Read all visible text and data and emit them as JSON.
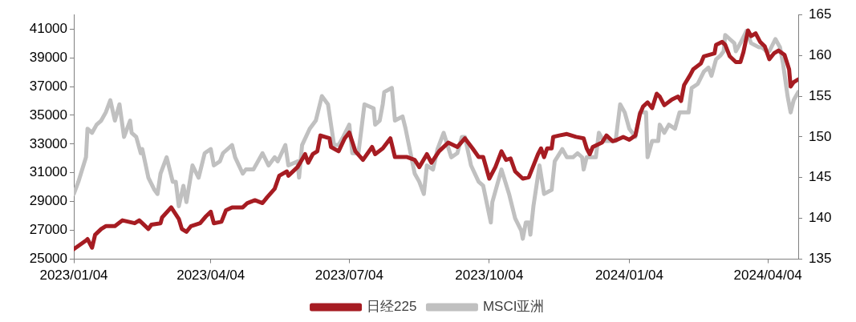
{
  "chart_data": {
    "type": "line",
    "legend": "bottom",
    "marker": "none",
    "line_style": "solid",
    "xlim": [
      "2023-01-04",
      "2024-04-24"
    ],
    "xticks": [
      {
        "value": "2023-01-04",
        "label": "2023/01/04"
      },
      {
        "value": "2023-04-04",
        "label": "2023/04/04"
      },
      {
        "value": "2023-07-04",
        "label": "2023/07/04"
      },
      {
        "value": "2023-10-04",
        "label": "2023/10/04"
      },
      {
        "value": "2024-01-04",
        "label": "2024/01/04"
      },
      {
        "value": "2024-04-04",
        "label": "2024/04/04"
      }
    ],
    "ylim": [
      25000,
      42000
    ],
    "yticks": [
      25000,
      27000,
      29000,
      31000,
      33000,
      35000,
      37000,
      39000,
      41000
    ],
    "y2lim": [
      135,
      165
    ],
    "y2ticks": [
      135,
      140,
      145,
      150,
      155,
      160,
      165
    ],
    "series": [
      {
        "name": "日经225",
        "color": "#a61c22",
        "x": [
          "2023-01-04",
          "2023-01-12",
          "2023-01-13",
          "2023-01-16",
          "2023-01-18",
          "2023-01-22",
          "2023-01-25",
          "2023-01-31",
          "2023-02-05",
          "2023-02-13",
          "2023-02-16",
          "2023-02-18",
          "2023-02-22",
          "2023-02-24",
          "2023-03-02",
          "2023-03-03",
          "2023-03-09",
          "2023-03-14",
          "2023-03-16",
          "2023-03-19",
          "2023-03-22",
          "2023-03-28",
          "2023-04-01",
          "2023-04-04",
          "2023-04-06",
          "2023-04-11",
          "2023-04-14",
          "2023-04-18",
          "2023-04-25",
          "2023-04-28",
          "2023-05-03",
          "2023-05-08",
          "2023-05-11",
          "2023-05-16",
          "2023-05-19",
          "2023-05-24",
          "2023-05-25",
          "2023-05-31",
          "2023-06-05",
          "2023-06-07",
          "2023-06-10",
          "2023-06-13",
          "2023-06-15",
          "2023-06-21",
          "2023-06-22",
          "2023-06-27",
          "2023-07-01",
          "2023-07-04",
          "2023-07-08",
          "2023-07-13",
          "2023-07-19",
          "2023-07-21",
          "2023-07-26",
          "2023-07-31",
          "2023-08-03",
          "2023-08-11",
          "2023-08-16",
          "2023-08-19",
          "2023-08-24",
          "2023-08-27",
          "2023-09-01",
          "2023-09-07",
          "2023-09-13",
          "2023-09-18",
          "2023-09-23",
          "2023-09-27",
          "2023-09-30",
          "2023-10-04",
          "2023-10-08",
          "2023-10-12",
          "2023-10-15",
          "2023-10-18",
          "2023-10-21",
          "2023-10-26",
          "2023-10-30",
          "2023-11-05",
          "2023-11-07",
          "2023-11-09",
          "2023-11-11",
          "2023-11-14",
          "2023-11-15",
          "2023-11-19",
          "2023-11-24",
          "2023-11-30",
          "2023-12-05",
          "2023-12-07",
          "2023-12-09",
          "2023-12-11",
          "2023-12-17",
          "2023-12-20",
          "2023-12-24",
          "2023-12-27",
          "2023-12-31",
          "2024-01-04",
          "2024-01-08",
          "2024-01-11",
          "2024-01-13",
          "2024-01-16",
          "2024-01-19",
          "2024-01-22",
          "2024-01-24",
          "2024-01-27",
          "2024-02-01",
          "2024-02-05",
          "2024-02-07",
          "2024-02-09",
          "2024-02-13",
          "2024-02-15",
          "2024-02-20",
          "2024-02-22",
          "2024-02-29",
          "2024-03-01",
          "2024-03-05",
          "2024-03-07",
          "2024-03-10",
          "2024-03-14",
          "2024-03-17",
          "2024-03-19",
          "2024-03-22",
          "2024-03-24",
          "2024-03-27",
          "2024-03-30",
          "2024-04-02",
          "2024-04-05",
          "2024-04-08",
          "2024-04-11",
          "2024-04-15",
          "2024-04-18",
          "2024-04-19",
          "2024-04-21",
          "2024-04-24"
        ],
        "values": [
          25700,
          26300,
          26400,
          25800,
          26700,
          27100,
          27300,
          27300,
          27700,
          27500,
          27700,
          27500,
          27100,
          27400,
          27500,
          27900,
          28600,
          27800,
          27100,
          26900,
          27300,
          27500,
          28000,
          28300,
          27500,
          27600,
          28400,
          28600,
          28600,
          28900,
          29100,
          28900,
          29300,
          29900,
          30800,
          31100,
          30800,
          31400,
          32300,
          31700,
          32300,
          32500,
          33600,
          33400,
          32800,
          32500,
          33400,
          33800,
          32500,
          31900,
          32800,
          32300,
          32700,
          33400,
          32100,
          32100,
          31900,
          31400,
          32300,
          31700,
          32500,
          33100,
          32800,
          33400,
          32700,
          32100,
          32100,
          30600,
          31400,
          32500,
          31900,
          32000,
          31100,
          30600,
          30700,
          32300,
          32700,
          32100,
          32700,
          32700,
          33500,
          33600,
          33700,
          33500,
          33400,
          32700,
          32300,
          32800,
          33100,
          33600,
          33200,
          33300,
          33500,
          33300,
          33600,
          35100,
          35600,
          35900,
          35500,
          36500,
          36300,
          35700,
          36100,
          36300,
          36000,
          37100,
          37800,
          38200,
          38600,
          39100,
          39300,
          39900,
          40100,
          39900,
          39100,
          38700,
          38700,
          39400,
          40900,
          40500,
          40700,
          40100,
          39800,
          38900,
          39300,
          39500,
          39200,
          38200,
          37000,
          37300,
          37500
        ]
      },
      {
        "name": "MSCI亚洲",
        "color": "#c0c0c0",
        "axis": "y2",
        "x": [
          "2023-01-04",
          "2023-01-07",
          "2023-01-12",
          "2023-01-13",
          "2023-01-16",
          "2023-01-19",
          "2023-01-22",
          "2023-01-25",
          "2023-01-28",
          "2023-01-31",
          "2023-02-03",
          "2023-02-06",
          "2023-02-10",
          "2023-02-11",
          "2023-02-14",
          "2023-02-17",
          "2023-02-18",
          "2023-02-22",
          "2023-02-26",
          "2023-02-28",
          "2023-03-02",
          "2023-03-06",
          "2023-03-10",
          "2023-03-12",
          "2023-03-14",
          "2023-03-17",
          "2023-03-19",
          "2023-03-23",
          "2023-03-27",
          "2023-03-31",
          "2023-04-04",
          "2023-04-06",
          "2023-04-10",
          "2023-04-12",
          "2023-04-18",
          "2023-04-20",
          "2023-04-25",
          "2023-04-27",
          "2023-05-02",
          "2023-05-08",
          "2023-05-12",
          "2023-05-16",
          "2023-05-18",
          "2023-05-23",
          "2023-05-25",
          "2023-05-31",
          "2023-06-01",
          "2023-06-03",
          "2023-06-08",
          "2023-06-12",
          "2023-06-16",
          "2023-06-20",
          "2023-06-24",
          "2023-06-27",
          "2023-06-30",
          "2023-07-04",
          "2023-07-06",
          "2023-07-10",
          "2023-07-14",
          "2023-07-20",
          "2023-07-21",
          "2023-07-24",
          "2023-07-26",
          "2023-07-27",
          "2023-08-01",
          "2023-08-03",
          "2023-08-08",
          "2023-08-10",
          "2023-08-16",
          "2023-08-19",
          "2023-08-22",
          "2023-08-24",
          "2023-08-28",
          "2023-08-31",
          "2023-09-04",
          "2023-09-09",
          "2023-09-13",
          "2023-09-16",
          "2023-09-18",
          "2023-09-22",
          "2023-09-27",
          "2023-09-30",
          "2023-10-05",
          "2023-10-06",
          "2023-10-12",
          "2023-10-17",
          "2023-10-21",
          "2023-10-25",
          "2023-10-26",
          "2023-10-28",
          "2023-10-30",
          "2023-10-31",
          "2023-11-02",
          "2023-11-06",
          "2023-11-09",
          "2023-11-14",
          "2023-11-16",
          "2023-11-21",
          "2023-11-24",
          "2023-11-28",
          "2023-12-01",
          "2023-12-04",
          "2023-12-05",
          "2023-12-07",
          "2023-12-13",
          "2023-12-15",
          "2023-12-18",
          "2023-12-22",
          "2023-12-26",
          "2023-12-29",
          "2024-01-01",
          "2024-01-04",
          "2024-01-08",
          "2024-01-11",
          "2024-01-15",
          "2024-01-16",
          "2024-01-19",
          "2024-01-23",
          "2024-01-24",
          "2024-01-27",
          "2024-01-30",
          "2024-02-03",
          "2024-02-06",
          "2024-02-09",
          "2024-02-12",
          "2024-02-14",
          "2024-02-18",
          "2024-02-22",
          "2024-02-25",
          "2024-02-27",
          "2024-03-01",
          "2024-03-04",
          "2024-03-06",
          "2024-03-07",
          "2024-03-10",
          "2024-03-13",
          "2024-03-14",
          "2024-03-17",
          "2024-03-21",
          "2024-03-24",
          "2024-03-29",
          "2024-03-31",
          "2024-04-03",
          "2024-04-05",
          "2024-04-09",
          "2024-04-12",
          "2024-04-14",
          "2024-04-17",
          "2024-04-19",
          "2024-04-21",
          "2024-04-24"
        ],
        "values": [
          143,
          144.5,
          147.5,
          151,
          150.5,
          151.5,
          152,
          153,
          154.5,
          152,
          154,
          150,
          152,
          150.5,
          150,
          148,
          148.5,
          145,
          143.5,
          143,
          145.5,
          147.5,
          144.5,
          144.5,
          141.5,
          144,
          142,
          146.5,
          145,
          148,
          148.5,
          146.5,
          147,
          148,
          149,
          147.5,
          145.5,
          146,
          146,
          148,
          146.5,
          147.5,
          147,
          149,
          146.5,
          147,
          145,
          149,
          151,
          152,
          155,
          154,
          149,
          149,
          150,
          151.5,
          148,
          148,
          154,
          153.5,
          151.5,
          152,
          154,
          155.5,
          156,
          152,
          152.5,
          151,
          145.5,
          144.5,
          143,
          146.5,
          146,
          148.5,
          150.5,
          147.5,
          148,
          150,
          150,
          146.5,
          144.5,
          144,
          139.5,
          142,
          146,
          143,
          140,
          138.5,
          137.5,
          139.5,
          139.5,
          138,
          141.5,
          146.5,
          143,
          143.5,
          147,
          148.5,
          147.5,
          147.5,
          148,
          147.5,
          146,
          147.5,
          147.5,
          150.5,
          149.5,
          149.5,
          149.5,
          154,
          153,
          151,
          150,
          153,
          153,
          147.5,
          149.5,
          149.5,
          151.5,
          150.5,
          151.5,
          151,
          153,
          153,
          153,
          156,
          156.5,
          158,
          158.5,
          157.5,
          159.5,
          160,
          160.5,
          162.5,
          162,
          161.5,
          160.5,
          161.5,
          163,
          161.5,
          161,
          161,
          160.5,
          160.5,
          162,
          161,
          159,
          155,
          153,
          154.5,
          155.5
        ]
      }
    ]
  }
}
